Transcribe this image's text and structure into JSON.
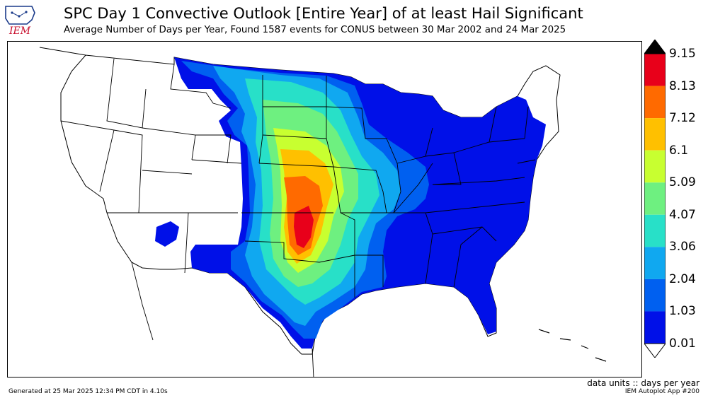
{
  "header": {
    "title": "SPC Day 1 Convective Outlook [Entire Year] of at least Hail Significant",
    "subtitle": "Average Number of Days per Year, Found 1587 events for CONUS between 30 Mar 2002 and 24 Mar 2025"
  },
  "logo": {
    "text": "IEM",
    "color": "#c8102e"
  },
  "legend": {
    "levels": [
      "9.15",
      "8.13",
      "7.12",
      "6.1",
      "5.09",
      "4.07",
      "3.06",
      "2.04",
      "1.03",
      "0.01"
    ],
    "colors": [
      "#e8001a",
      "#ff6a00",
      "#ffc000",
      "#c8ff30",
      "#6ef080",
      "#28e0c8",
      "#10a8f0",
      "#0060f0",
      "#0010e8"
    ],
    "over_color": "#000000",
    "under_color": "#ffffff"
  },
  "units": "data units :: days per year",
  "footer": {
    "generated": "Generated at 25 Mar 2025 12:34 PM CDT in 4.10s",
    "app": "IEM Autoplot App #200"
  }
}
